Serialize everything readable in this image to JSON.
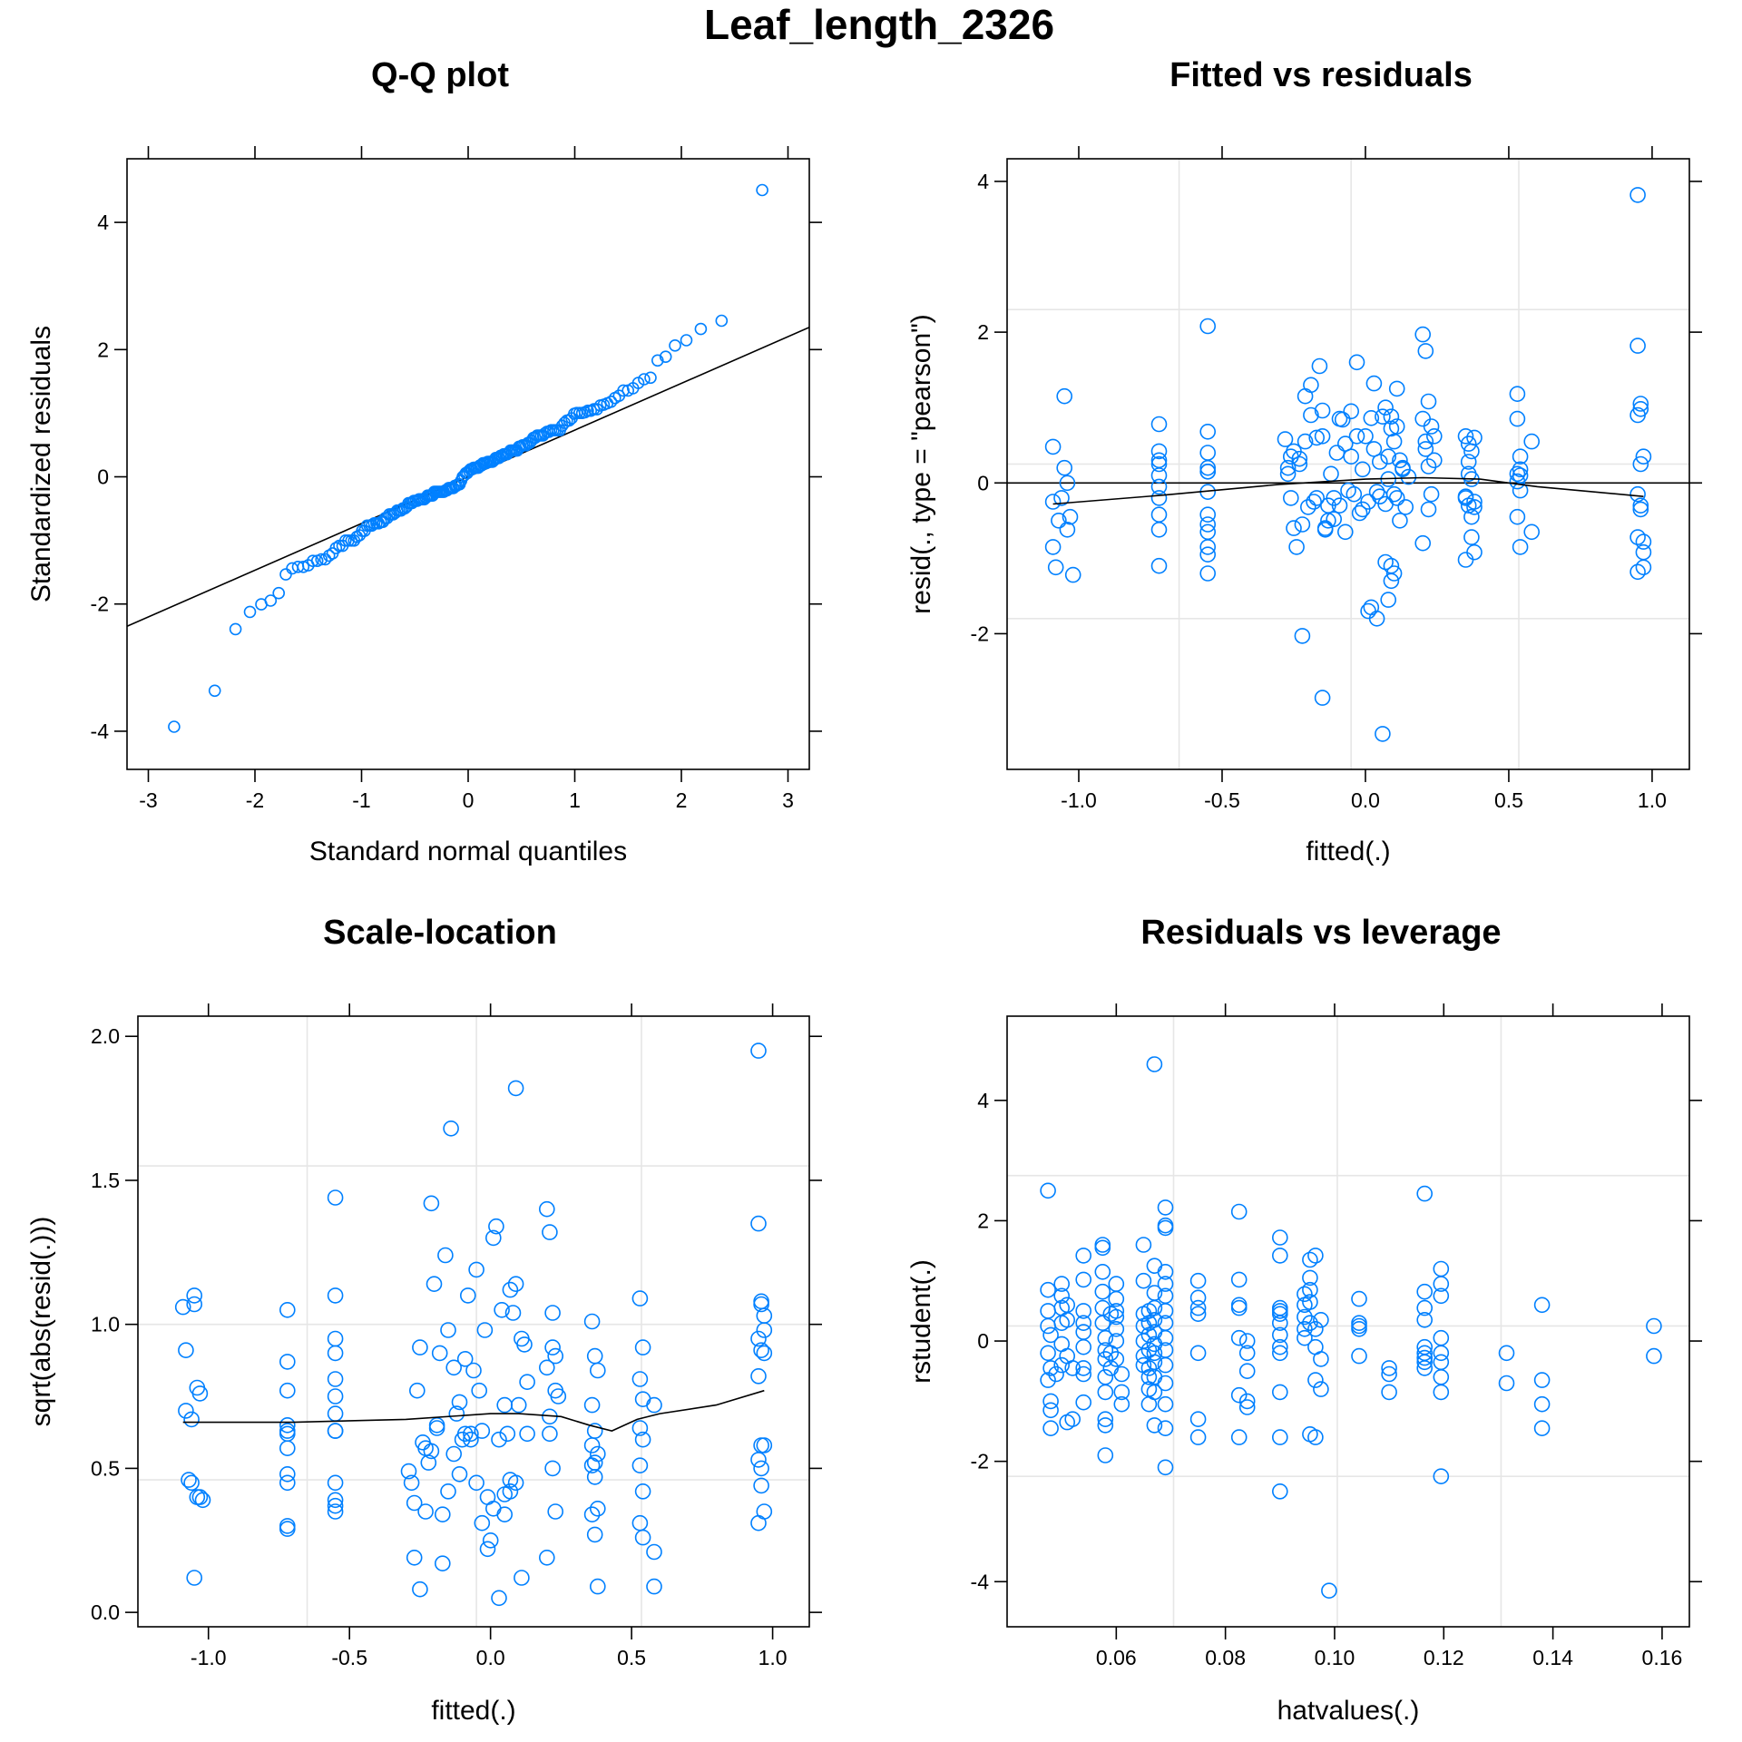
{
  "title": "Leaf_length_2326",
  "colors": {
    "points": "#0080ff",
    "lines": "#000000",
    "grid": "#e6e6e6"
  },
  "chart_data": [
    {
      "id": "qq",
      "type": "scatter",
      "title": "Q-Q plot",
      "xlabel": "Standard normal quantiles",
      "ylabel": "Standardized residuals",
      "xlim": [
        -3.2,
        3.2
      ],
      "ylim": [
        -4.6,
        5.0
      ],
      "xticks": [
        -3,
        -2,
        -1,
        0,
        1,
        2,
        3
      ],
      "yticks": [
        -4,
        -2,
        0,
        2,
        4
      ],
      "grid": false,
      "reference_line": {
        "x": [
          -3.2,
          3.2
        ],
        "y": [
          -2.35,
          2.35
        ]
      },
      "points": "qq_generated_from_sorted_residuals",
      "x": [],
      "y": []
    },
    {
      "id": "fitted",
      "type": "scatter",
      "title": "Fitted vs residuals",
      "xlabel": "fitted(.)",
      "ylabel": "resid(., type = \"pearson\")",
      "xlim": [
        -1.25,
        1.13
      ],
      "ylim": [
        -3.8,
        4.3
      ],
      "xticks": [
        -1.0,
        -0.5,
        0.0,
        0.5,
        1.0
      ],
      "xticklabels": [
        "-1.0",
        "-0.5",
        "0.0",
        "0.5",
        "1.0"
      ],
      "yticks": [
        -2,
        0,
        2,
        4
      ],
      "grid": true,
      "gridx": [
        -0.65,
        -0.05,
        0.535
      ],
      "gridy": [
        -1.8,
        0.25,
        2.3
      ],
      "hline": 0,
      "smooth": {
        "x": [
          -1.09,
          -0.7,
          -0.3,
          0.0,
          0.2,
          0.4,
          0.6,
          0.97
        ],
        "y": [
          -0.28,
          -0.16,
          -0.02,
          0.05,
          0.07,
          0.05,
          -0.05,
          -0.18
        ]
      },
      "x": [
        -1.09,
        -1.09,
        -1.08,
        -1.07,
        -1.06,
        -1.05,
        -1.04,
        -1.04,
        -1.03,
        -1.02,
        -1.05,
        -1.09,
        -0.72,
        -0.72,
        -0.72,
        -0.72,
        -0.72,
        -0.72,
        -0.72,
        -0.72,
        -0.72,
        -0.72,
        -0.55,
        -0.55,
        -0.55,
        -0.55,
        -0.55,
        -0.55,
        -0.55,
        -0.55,
        -0.55,
        -0.55,
        -0.55,
        -0.55,
        -0.55,
        -0.28,
        -0.27,
        -0.26,
        -0.25,
        -0.24,
        -0.23,
        -0.22,
        -0.21,
        -0.2,
        -0.19,
        -0.18,
        -0.17,
        -0.16,
        -0.15,
        -0.14,
        -0.13,
        -0.12,
        -0.11,
        -0.1,
        -0.09,
        -0.08,
        -0.07,
        -0.06,
        -0.05,
        -0.04,
        -0.03,
        -0.02,
        -0.01,
        0.0,
        0.01,
        0.02,
        0.03,
        0.04,
        0.05,
        0.06,
        0.07,
        0.08,
        0.09,
        0.1,
        0.11,
        0.12,
        0.13,
        0.14,
        0.15,
        -0.27,
        -0.26,
        -0.25,
        -0.23,
        -0.21,
        -0.19,
        -0.17,
        -0.15,
        -0.13,
        -0.11,
        -0.09,
        -0.07,
        -0.05,
        -0.03,
        -0.01,
        0.01,
        0.03,
        0.05,
        0.07,
        0.09,
        0.11,
        0.13,
        0.06,
        0.07,
        0.08,
        0.09,
        0.1,
        0.11,
        0.12,
        -0.15,
        -0.22,
        0.04,
        0.02,
        -0.14,
        0.08,
        0.09,
        0.1,
        0.2,
        0.21,
        0.22,
        0.23,
        0.24,
        0.2,
        0.21,
        0.22,
        0.23,
        0.24,
        0.2,
        0.21,
        0.22,
        0.35,
        0.36,
        0.37,
        0.38,
        0.35,
        0.36,
        0.37,
        0.38,
        0.35,
        0.36,
        0.37,
        0.38,
        0.36,
        0.37,
        0.38,
        0.35,
        0.53,
        0.53,
        0.54,
        0.54,
        0.53,
        0.54,
        0.53,
        0.54,
        0.53,
        0.54,
        0.58,
        0.58,
        0.95,
        0.95,
        0.96,
        0.96,
        0.95,
        0.96,
        0.97,
        0.97,
        0.95,
        0.96,
        0.97,
        0.95,
        0.96,
        0.97,
        0.95
      ],
      "y": [
        0.48,
        -0.85,
        -1.12,
        -0.5,
        -0.2,
        0.2,
        -0.62,
        0.0,
        -0.45,
        -1.22,
        1.15,
        -0.25,
        0.78,
        0.42,
        0.3,
        0.1,
        -0.2,
        -0.42,
        -0.62,
        -1.1,
        0.25,
        -0.05,
        2.08,
        0.68,
        0.4,
        0.2,
        0.15,
        -0.12,
        -0.42,
        -0.55,
        -0.65,
        -0.85,
        -0.95,
        -1.2,
        0.15,
        0.58,
        0.2,
        -0.2,
        0.42,
        -0.85,
        0.32,
        -0.55,
        1.15,
        -0.32,
        0.9,
        -0.25,
        0.6,
        1.55,
        0.96,
        -0.62,
        -0.5,
        0.12,
        -0.2,
        0.4,
        -0.3,
        0.84,
        0.52,
        -0.1,
        0.35,
        -0.15,
        0.62,
        -0.4,
        0.18,
        0.62,
        -0.25,
        0.86,
        1.32,
        -0.12,
        0.28,
        0.88,
        -0.28,
        0.05,
        0.72,
        0.55,
        -0.2,
        0.3,
        0.18,
        -0.32,
        0.08,
        0.12,
        0.35,
        -0.6,
        0.25,
        0.55,
        1.3,
        -0.2,
        0.62,
        -0.3,
        -0.48,
        0.85,
        -0.65,
        0.95,
        1.6,
        -0.35,
        -1.7,
        0.45,
        -0.18,
        1.0,
        -1.1,
        0.75,
        0.2,
        -3.33,
        -1.05,
        -1.55,
        -1.3,
        -1.2,
        1.25,
        -0.5,
        -2.85,
        -2.03,
        -1.8,
        -1.65,
        -0.6,
        0.35,
        0.88,
        -0.15,
        1.97,
        1.75,
        1.08,
        0.75,
        0.3,
        0.85,
        0.55,
        -0.35,
        -0.15,
        0.62,
        -0.8,
        0.45,
        0.22,
        0.62,
        0.52,
        0.42,
        -0.25,
        -0.18,
        -0.3,
        -0.45,
        -0.92,
        -1.02,
        0.12,
        -0.72,
        -0.32,
        0.28,
        0.05,
        0.6,
        -0.2,
        1.18,
        0.85,
        0.35,
        0.18,
        0.02,
        -0.1,
        -0.45,
        -0.85,
        0.12,
        0.1,
        0.55,
        -0.65,
        3.82,
        1.82,
        1.05,
        0.98,
        0.9,
        0.25,
        0.35,
        -0.78,
        -0.15,
        -0.3,
        -1.12,
        -0.72,
        -0.35,
        -0.92,
        -1.18
      ]
    },
    {
      "id": "scale",
      "type": "scatter",
      "title": "Scale-location",
      "xlabel": "fitted(.)",
      "ylabel": "sqrt(abs(resid(.)))",
      "xlim": [
        -1.25,
        1.13
      ],
      "ylim": [
        -0.05,
        2.07
      ],
      "xticks": [
        -1.0,
        -0.5,
        0.0,
        0.5,
        1.0
      ],
      "xticklabels": [
        "-1.0",
        "-0.5",
        "0.0",
        "0.5",
        "1.0"
      ],
      "yticks": [
        0.0,
        0.5,
        1.0,
        1.5,
        2.0
      ],
      "yticklabels": [
        "0.0",
        "0.5",
        "1.0",
        "1.5",
        "2.0"
      ],
      "grid": true,
      "gridx": [
        -0.65,
        -0.05,
        0.535
      ],
      "gridy": [
        0.46,
        1.0,
        1.55
      ],
      "smooth": {
        "x": [
          -1.09,
          -0.7,
          -0.3,
          0.0,
          0.1,
          0.25,
          0.35,
          0.43,
          0.52,
          0.6,
          0.8,
          0.97
        ],
        "y": [
          0.66,
          0.66,
          0.67,
          0.69,
          0.69,
          0.68,
          0.65,
          0.63,
          0.67,
          0.69,
          0.72,
          0.77
        ]
      },
      "x": [
        -1.09,
        -1.08,
        -1.08,
        -1.07,
        -1.06,
        -1.05,
        -1.05,
        -1.04,
        -1.04,
        -1.03,
        -1.03,
        -1.02,
        -1.05,
        -1.06,
        -0.72,
        -0.72,
        -0.72,
        -0.72,
        -0.72,
        -0.72,
        -0.72,
        -0.72,
        -0.72,
        -0.72,
        -0.72,
        -0.55,
        -0.55,
        -0.55,
        -0.55,
        -0.55,
        -0.55,
        -0.55,
        -0.55,
        -0.55,
        -0.55,
        -0.55,
        -0.55,
        -0.55,
        -0.29,
        -0.28,
        -0.27,
        -0.26,
        -0.25,
        -0.24,
        -0.23,
        -0.22,
        -0.21,
        -0.2,
        -0.19,
        -0.18,
        -0.17,
        -0.16,
        -0.15,
        -0.14,
        -0.13,
        -0.12,
        -0.11,
        -0.1,
        -0.09,
        -0.08,
        -0.07,
        -0.06,
        -0.05,
        -0.04,
        -0.03,
        -0.02,
        -0.01,
        0.0,
        0.01,
        0.02,
        0.03,
        0.04,
        0.05,
        0.06,
        0.07,
        0.08,
        0.09,
        0.1,
        0.11,
        0.12,
        0.13,
        -0.27,
        -0.25,
        -0.23,
        -0.21,
        -0.19,
        -0.17,
        -0.15,
        -0.13,
        -0.11,
        -0.09,
        -0.07,
        -0.05,
        -0.03,
        -0.01,
        0.01,
        0.03,
        0.05,
        0.07,
        0.09,
        0.11,
        0.13,
        0.05,
        0.07,
        0.09,
        0.2,
        0.21,
        0.22,
        0.23,
        0.24,
        0.2,
        0.21,
        0.22,
        0.23,
        0.2,
        0.21,
        0.22,
        0.23,
        0.36,
        0.37,
        0.38,
        0.36,
        0.37,
        0.38,
        0.36,
        0.37,
        0.38,
        0.36,
        0.37,
        0.38,
        0.36,
        0.37,
        0.53,
        0.54,
        0.53,
        0.54,
        0.53,
        0.54,
        0.53,
        0.54,
        0.53,
        0.54,
        0.58,
        0.58,
        0.58,
        0.95,
        0.95,
        0.96,
        0.96,
        0.97,
        0.97,
        0.95,
        0.96,
        0.97,
        0.95,
        0.96,
        0.97,
        0.95,
        0.96,
        0.97,
        0.95,
        0.96
      ],
      "y": [
        1.06,
        0.91,
        0.7,
        0.46,
        0.45,
        1.1,
        1.07,
        0.78,
        0.4,
        0.76,
        0.4,
        0.39,
        0.12,
        0.67,
        1.05,
        0.87,
        0.77,
        0.65,
        0.63,
        0.57,
        0.48,
        0.45,
        0.3,
        0.29,
        0.62,
        1.44,
        1.1,
        0.95,
        0.9,
        0.81,
        0.75,
        0.69,
        0.63,
        0.63,
        0.45,
        0.39,
        0.37,
        0.35,
        0.49,
        0.45,
        0.38,
        0.77,
        0.92,
        0.59,
        0.57,
        0.52,
        1.42,
        1.14,
        0.64,
        0.9,
        0.34,
        1.24,
        0.98,
        1.68,
        0.85,
        0.69,
        0.48,
        0.6,
        0.62,
        1.1,
        0.62,
        0.84,
        1.19,
        0.77,
        0.63,
        0.98,
        0.4,
        0.25,
        1.3,
        1.34,
        0.6,
        1.05,
        0.72,
        0.62,
        1.12,
        1.04,
        1.14,
        0.72,
        0.95,
        0.93,
        0.8,
        0.19,
        0.08,
        0.35,
        0.56,
        0.65,
        0.17,
        0.42,
        0.55,
        0.73,
        0.88,
        0.6,
        0.45,
        0.31,
        0.22,
        0.36,
        0.05,
        0.34,
        0.46,
        1.82,
        0.12,
        0.62,
        0.41,
        0.42,
        0.45,
        1.4,
        1.32,
        0.92,
        0.89,
        0.75,
        0.85,
        0.62,
        1.04,
        0.35,
        0.19,
        0.68,
        0.5,
        0.77,
        1.01,
        0.89,
        0.84,
        0.72,
        0.63,
        0.55,
        0.51,
        0.47,
        0.36,
        0.34,
        0.27,
        0.09,
        0.58,
        0.52,
        1.09,
        0.92,
        0.81,
        0.74,
        0.64,
        0.6,
        0.51,
        0.42,
        0.31,
        0.26,
        0.09,
        0.21,
        0.72,
        1.95,
        1.35,
        1.08,
        1.07,
        1.03,
        0.98,
        0.95,
        0.91,
        0.9,
        0.82,
        0.58,
        0.58,
        0.53,
        0.44,
        0.35,
        0.31,
        0.5
      ]
    },
    {
      "id": "leverage",
      "type": "scatter",
      "title": "Residuals vs leverage",
      "xlabel": "hatvalues(.)",
      "ylabel": "rstudent(.)",
      "xlim": [
        0.04,
        0.165
      ],
      "ylim": [
        -4.75,
        5.4
      ],
      "xticks": [
        0.06,
        0.08,
        0.1,
        0.12,
        0.14,
        0.16
      ],
      "xticklabels": [
        "0.06",
        "0.08",
        "0.10",
        "0.12",
        "0.14",
        "0.16"
      ],
      "yticks": [
        -4,
        -2,
        0,
        2,
        4
      ],
      "grid": true,
      "gridx": [
        0.0705,
        0.1005,
        0.1305
      ],
      "gridy": [
        -2.25,
        0.25,
        2.75
      ],
      "x": [
        0.0475,
        0.0475,
        0.0475,
        0.0475,
        0.0475,
        0.0475,
        0.048,
        0.048,
        0.048,
        0.048,
        0.048,
        0.049,
        0.05,
        0.05,
        0.05,
        0.05,
        0.05,
        0.05,
        0.051,
        0.051,
        0.051,
        0.051,
        0.052,
        0.052,
        0.054,
        0.054,
        0.054,
        0.054,
        0.054,
        0.054,
        0.054,
        0.054,
        0.054,
        0.0575,
        0.0575,
        0.0575,
        0.0575,
        0.0575,
        0.0575,
        0.058,
        0.058,
        0.058,
        0.058,
        0.058,
        0.058,
        0.058,
        0.058,
        0.059,
        0.059,
        0.059,
        0.06,
        0.06,
        0.06,
        0.06,
        0.06,
        0.06,
        0.06,
        0.061,
        0.061,
        0.061,
        0.065,
        0.065,
        0.065,
        0.065,
        0.065,
        0.065,
        0.065,
        0.066,
        0.066,
        0.066,
        0.066,
        0.066,
        0.066,
        0.066,
        0.066,
        0.067,
        0.067,
        0.067,
        0.067,
        0.067,
        0.067,
        0.067,
        0.067,
        0.067,
        0.067,
        0.067,
        0.067,
        0.069,
        0.069,
        0.069,
        0.069,
        0.069,
        0.069,
        0.069,
        0.069,
        0.069,
        0.069,
        0.069,
        0.069,
        0.069,
        0.069,
        0.069,
        0.075,
        0.075,
        0.075,
        0.075,
        0.075,
        0.075,
        0.075,
        0.0825,
        0.0825,
        0.0825,
        0.0825,
        0.0825,
        0.0825,
        0.0825,
        0.084,
        0.084,
        0.084,
        0.084,
        0.084,
        0.09,
        0.09,
        0.09,
        0.09,
        0.09,
        0.09,
        0.09,
        0.09,
        0.09,
        0.09,
        0.09,
        0.09,
        0.0945,
        0.0945,
        0.0945,
        0.0945,
        0.0945,
        0.0955,
        0.0955,
        0.0955,
        0.0955,
        0.0955,
        0.0965,
        0.0965,
        0.0965,
        0.0965,
        0.0965,
        0.0975,
        0.0975,
        0.0975,
        0.099,
        0.0955,
        0.1045,
        0.1045,
        0.1045,
        0.1045,
        0.1045,
        0.11,
        0.11,
        0.11,
        0.1165,
        0.1165,
        0.1165,
        0.1165,
        0.1165,
        0.1165,
        0.1165,
        0.1165,
        0.1165,
        0.1195,
        0.1195,
        0.1195,
        0.1195,
        0.1195,
        0.1195,
        0.1195,
        0.1195,
        0.1195,
        0.1315,
        0.1315,
        0.138,
        0.138,
        0.138,
        0.138,
        0.1585,
        0.1585
      ],
      "y": [
        2.5,
        0.85,
        0.5,
        0.25,
        -0.2,
        -0.65,
        -0.45,
        -1.0,
        -1.15,
        -1.45,
        0.1,
        -0.55,
        0.95,
        0.75,
        0.55,
        0.3,
        -0.05,
        -0.4,
        0.6,
        0.35,
        -0.25,
        -1.35,
        -0.45,
        -1.3,
        1.42,
        1.02,
        0.5,
        0.3,
        0.15,
        -0.1,
        -0.45,
        -0.55,
        -1.02,
        1.6,
        1.55,
        1.15,
        0.82,
        0.55,
        0.3,
        0.05,
        -0.15,
        -0.3,
        -0.6,
        -0.85,
        -1.3,
        -1.4,
        -1.9,
        0.45,
        -0.2,
        -0.45,
        0.95,
        0.7,
        0.5,
        0.4,
        0.2,
        0.0,
        -0.3,
        -0.55,
        -0.85,
        -1.05,
        1.6,
        1.0,
        0.45,
        0.25,
        0.0,
        -0.25,
        -0.4,
        0.5,
        0.3,
        0.1,
        -0.15,
        -0.45,
        -0.6,
        -0.8,
        -1.05,
        4.6,
        1.25,
        0.8,
        0.55,
        0.35,
        0.15,
        -0.05,
        -0.2,
        -0.35,
        -0.6,
        -0.85,
        -1.4,
        2.22,
        1.92,
        1.88,
        1.15,
        0.95,
        0.75,
        0.5,
        0.3,
        0.05,
        -0.15,
        -0.4,
        -0.7,
        -1.05,
        -1.45,
        -2.1,
        1.0,
        0.72,
        0.55,
        0.45,
        -0.2,
        -1.3,
        -1.6,
        2.15,
        1.02,
        0.6,
        0.55,
        0.05,
        -0.9,
        -1.6,
        0.0,
        -0.2,
        -0.5,
        -1.0,
        -1.1,
        1.72,
        1.42,
        0.55,
        0.5,
        0.45,
        0.3,
        0.1,
        -0.1,
        -0.2,
        -0.85,
        -1.6,
        -2.5,
        0.78,
        0.6,
        0.4,
        0.2,
        0.05,
        1.35,
        1.05,
        0.85,
        0.65,
        0.3,
        1.42,
        0.2,
        -0.1,
        -0.65,
        -1.6,
        0.35,
        -0.3,
        -0.8,
        -4.15,
        -1.55,
        0.7,
        0.3,
        0.25,
        0.2,
        -0.25,
        -0.45,
        -0.55,
        -0.85,
        2.45,
        0.82,
        0.55,
        0.35,
        -0.1,
        -0.2,
        -0.28,
        -0.35,
        -0.45,
        1.2,
        0.95,
        0.75,
        0.05,
        -0.2,
        -0.35,
        -0.6,
        -0.85,
        -2.25,
        -0.2,
        -0.7,
        0.6,
        -0.65,
        -1.05,
        -1.45,
        0.25,
        -0.25
      ]
    }
  ]
}
